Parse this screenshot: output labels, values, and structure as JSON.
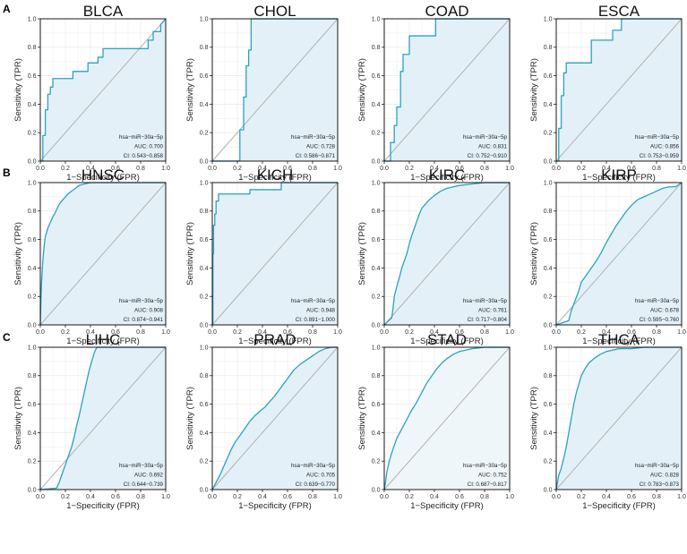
{
  "figure_labels": [
    "A",
    "B",
    "C"
  ],
  "styles": {
    "curve_color": "#2aa3c3",
    "fill_color": "#e3f0f8",
    "fill_color_light": "#eef6fa",
    "diagonal_color": "#b3b3b3",
    "grid_color": "#e6e6e6"
  },
  "chart_data": [
    {
      "type": "line",
      "title": "BLCA",
      "row": 0,
      "col": 0,
      "xlabel": "1−Specificity (FPR)",
      "ylabel": "Sensitivity (TPR)",
      "xlim": [
        0,
        1
      ],
      "ylim": [
        0,
        1
      ],
      "x": [
        0,
        0.02,
        0.02,
        0.04,
        0.04,
        0.06,
        0.06,
        0.08,
        0.08,
        0.1,
        0.1,
        0.26,
        0.26,
        0.38,
        0.38,
        0.46,
        0.46,
        0.5,
        0.5,
        0.68,
        0.68,
        0.86,
        0.86,
        0.9,
        0.9,
        0.96,
        0.96,
        1
      ],
      "y": [
        0,
        0,
        0.18,
        0.18,
        0.36,
        0.36,
        0.47,
        0.47,
        0.52,
        0.52,
        0.58,
        0.58,
        0.63,
        0.63,
        0.69,
        0.69,
        0.73,
        0.73,
        0.79,
        0.79,
        0.79,
        0.79,
        0.85,
        0.85,
        0.91,
        0.91,
        0.96,
        1
      ],
      "legend": {
        "name": "hsa−miR−30a−5p",
        "auc": "AUC: 0.700",
        "ci": "CI: 0.543−0.858"
      }
    },
    {
      "type": "line",
      "title": "CHOL",
      "row": 0,
      "col": 1,
      "xlabel": "1−Specificity (FPR)",
      "ylabel": "Sensitivity (TPR)",
      "xlim": [
        0,
        1
      ],
      "ylim": [
        0,
        1
      ],
      "x": [
        0,
        0.22,
        0.22,
        0.25,
        0.25,
        0.27,
        0.27,
        0.29,
        0.29,
        0.31,
        0.31,
        1
      ],
      "y": [
        0,
        0,
        0.22,
        0.22,
        0.45,
        0.45,
        0.67,
        0.67,
        0.78,
        0.78,
        1,
        1
      ],
      "legend": {
        "name": "hsa−miR−30a−5p",
        "auc": "AUC: 0.728",
        "ci": "CI: 0.586−0.871"
      }
    },
    {
      "type": "line",
      "title": "COAD",
      "row": 0,
      "col": 2,
      "xlabel": "1−Specificity (FPR)",
      "ylabel": "Sensitivity (TPR)",
      "xlim": [
        0,
        1
      ],
      "ylim": [
        0,
        1
      ],
      "x": [
        0,
        0.05,
        0.05,
        0.08,
        0.08,
        0.1,
        0.1,
        0.13,
        0.13,
        0.15,
        0.15,
        0.2,
        0.2,
        0.41,
        0.41,
        1
      ],
      "y": [
        0,
        0,
        0.13,
        0.13,
        0.25,
        0.25,
        0.38,
        0.38,
        0.63,
        0.63,
        0.75,
        0.75,
        0.88,
        0.88,
        1,
        1
      ],
      "legend": {
        "name": "hsa−miR−30a−5p",
        "auc": "AUC: 0.831",
        "ci": "CI: 0.752−0.910"
      }
    },
    {
      "type": "line",
      "title": "ESCA",
      "row": 0,
      "col": 3,
      "xlabel": "1−Specificity (FPR)",
      "ylabel": "Sensitivity (TPR)",
      "xlim": [
        0,
        1
      ],
      "ylim": [
        0,
        1
      ],
      "x": [
        0,
        0.02,
        0.02,
        0.04,
        0.04,
        0.06,
        0.06,
        0.08,
        0.08,
        0.28,
        0.28,
        0.45,
        0.45,
        0.52,
        0.52,
        1
      ],
      "y": [
        0,
        0,
        0.23,
        0.23,
        0.46,
        0.46,
        0.62,
        0.62,
        0.69,
        0.69,
        0.85,
        0.85,
        0.92,
        0.92,
        1,
        1
      ],
      "legend": {
        "name": "hsa−miR−30a−5p",
        "auc": "AUC: 0.856",
        "ci": "CI: 0.753−0.959"
      }
    },
    {
      "type": "line",
      "title": "HNSC",
      "row": 1,
      "col": 0,
      "xlabel": "1−Specificity (FPR)",
      "ylabel": "Sensitivity (TPR)",
      "xlim": [
        0,
        1
      ],
      "ylim": [
        0,
        1
      ],
      "x": [
        0,
        0.005,
        0.01,
        0.02,
        0.03,
        0.04,
        0.06,
        0.08,
        0.1,
        0.12,
        0.14,
        0.16,
        0.18,
        0.2,
        0.22,
        0.25,
        0.28,
        0.31,
        0.35,
        0.4,
        0.5,
        0.6,
        1
      ],
      "y": [
        0,
        0.18,
        0.3,
        0.45,
        0.55,
        0.62,
        0.68,
        0.72,
        0.76,
        0.79,
        0.83,
        0.86,
        0.88,
        0.9,
        0.92,
        0.94,
        0.96,
        0.98,
        0.99,
        1,
        1,
        1,
        1
      ],
      "legend": {
        "name": "hsa−miR−30a−5p",
        "auc": "AUC: 0.908",
        "ci": "CI: 0.874−0.941"
      }
    },
    {
      "type": "line",
      "title": "KICH",
      "row": 1,
      "col": 1,
      "xlabel": "1−Specificity (FPR)",
      "ylabel": "Sensitivity (TPR)",
      "xlim": [
        0,
        1
      ],
      "ylim": [
        0,
        1
      ],
      "x": [
        0,
        0.005,
        0.005,
        0.01,
        0.01,
        0.02,
        0.02,
        0.03,
        0.03,
        0.05,
        0.05,
        0.3,
        0.3,
        0.55,
        0.55,
        0.62,
        0.62,
        1
      ],
      "y": [
        0,
        0,
        0.5,
        0.5,
        0.7,
        0.7,
        0.78,
        0.78,
        0.87,
        0.87,
        0.92,
        0.92,
        0.95,
        0.95,
        1,
        1,
        1,
        1
      ],
      "legend": {
        "name": "hsa−miR−30a−5p",
        "auc": "AUC: 0.948",
        "ci": "CI: 0.891−1.000"
      }
    },
    {
      "type": "line",
      "title": "KIRC",
      "row": 1,
      "col": 2,
      "xlabel": "1−Specificity (FPR)",
      "ylabel": "Sensitivity (TPR)",
      "xlim": [
        0,
        1
      ],
      "ylim": [
        0,
        1
      ],
      "x": [
        0,
        0.06,
        0.07,
        0.08,
        0.1,
        0.12,
        0.14,
        0.16,
        0.18,
        0.2,
        0.22,
        0.24,
        0.26,
        0.28,
        0.3,
        0.33,
        0.36,
        0.4,
        0.45,
        0.5,
        0.6,
        0.7,
        0.8,
        1
      ],
      "y": [
        0,
        0.05,
        0.12,
        0.2,
        0.27,
        0.33,
        0.4,
        0.45,
        0.5,
        0.57,
        0.63,
        0.68,
        0.73,
        0.78,
        0.82,
        0.85,
        0.88,
        0.91,
        0.94,
        0.96,
        0.98,
        0.99,
        1,
        1
      ],
      "legend": {
        "name": "hsa−miR−30a−5p",
        "auc": "AUC: 0.761",
        "ci": "CI: 0.717−0.804"
      }
    },
    {
      "type": "line",
      "title": "KIRP",
      "row": 1,
      "col": 3,
      "xlabel": "1−Specificity (FPR)",
      "ylabel": "Sensitivity (TPR)",
      "xlim": [
        0,
        1
      ],
      "ylim": [
        0,
        1
      ],
      "x": [
        0,
        0.1,
        0.12,
        0.15,
        0.18,
        0.2,
        0.24,
        0.28,
        0.32,
        0.36,
        0.4,
        0.44,
        0.48,
        0.52,
        0.56,
        0.6,
        0.65,
        0.7,
        0.75,
        0.8,
        0.85,
        0.9,
        0.95,
        1
      ],
      "y": [
        0,
        0.03,
        0.1,
        0.17,
        0.24,
        0.3,
        0.35,
        0.4,
        0.45,
        0.51,
        0.58,
        0.64,
        0.7,
        0.75,
        0.8,
        0.84,
        0.88,
        0.9,
        0.92,
        0.94,
        0.96,
        0.97,
        0.97,
        1
      ],
      "legend": {
        "name": "hsa−miR−30a−5p",
        "auc": "AUC: 0.678",
        "ci": "CI: 0.595−0.760"
      }
    },
    {
      "type": "line",
      "title": "LIHC",
      "row": 2,
      "col": 0,
      "xlabel": "1−Specificity (FPR)",
      "ylabel": "Sensitivity (TPR)",
      "xlim": [
        0,
        1
      ],
      "ylim": [
        0,
        1
      ],
      "x": [
        0,
        0.13,
        0.15,
        0.17,
        0.19,
        0.21,
        0.23,
        0.25,
        0.27,
        0.29,
        0.31,
        0.33,
        0.35,
        0.37,
        0.39,
        0.41,
        0.43,
        0.45,
        0.5,
        0.6,
        0.7,
        0.8,
        1
      ],
      "y": [
        0,
        0.01,
        0.05,
        0.1,
        0.15,
        0.2,
        0.25,
        0.3,
        0.37,
        0.45,
        0.52,
        0.6,
        0.68,
        0.76,
        0.84,
        0.9,
        0.96,
        1,
        1,
        1,
        1,
        1,
        1
      ],
      "legend": {
        "name": "hsa−miR−30a−5p",
        "auc": "AUC: 0.692",
        "ci": "CI: 0.644−0.739"
      }
    },
    {
      "type": "line",
      "title": "PRAD",
      "row": 2,
      "col": 1,
      "xlabel": "1−Specificity (FPR)",
      "ylabel": "Sensitivity (TPR)",
      "xlim": [
        0,
        1
      ],
      "ylim": [
        0,
        1
      ],
      "x": [
        0,
        0.03,
        0.06,
        0.09,
        0.12,
        0.15,
        0.18,
        0.22,
        0.26,
        0.3,
        0.34,
        0.38,
        0.42,
        0.46,
        0.5,
        0.55,
        0.6,
        0.65,
        0.7,
        0.75,
        0.8,
        0.85,
        0.9,
        0.95,
        1
      ],
      "y": [
        0,
        0.05,
        0.1,
        0.16,
        0.22,
        0.28,
        0.33,
        0.38,
        0.43,
        0.48,
        0.52,
        0.55,
        0.58,
        0.62,
        0.66,
        0.72,
        0.78,
        0.84,
        0.88,
        0.91,
        0.94,
        0.97,
        0.99,
        1,
        1
      ],
      "legend": {
        "name": "hsa−miR−30a−5p",
        "auc": "AUC: 0.705",
        "ci": "CI: 0.639−0.770"
      }
    },
    {
      "type": "line",
      "title": "STAD",
      "row": 2,
      "col": 2,
      "xlabel": "1−Specificity (FPR)",
      "ylabel": "Sensitivity (TPR)",
      "xlim": [
        0,
        1
      ],
      "ylim": [
        0,
        1
      ],
      "x": [
        0,
        0.01,
        0.02,
        0.04,
        0.06,
        0.08,
        0.1,
        0.13,
        0.16,
        0.19,
        0.22,
        0.25,
        0.28,
        0.31,
        0.34,
        0.38,
        0.42,
        0.46,
        0.5,
        0.55,
        0.6,
        0.7,
        0.8,
        0.9,
        1
      ],
      "y": [
        0,
        0.05,
        0.12,
        0.2,
        0.26,
        0.31,
        0.36,
        0.41,
        0.46,
        0.51,
        0.56,
        0.6,
        0.65,
        0.7,
        0.75,
        0.8,
        0.85,
        0.89,
        0.92,
        0.95,
        0.97,
        0.99,
        1,
        1,
        1
      ],
      "legend": {
        "name": "hsa−miR−30a−5p",
        "auc": "AUC: 0.752",
        "ci": "CI: 0.687−0.817"
      }
    },
    {
      "type": "line",
      "title": "THCA",
      "row": 2,
      "col": 3,
      "xlabel": "1−Specificity (FPR)",
      "ylabel": "Sensitivity (TPR)",
      "xlim": [
        0,
        1
      ],
      "ylim": [
        0,
        1
      ],
      "x": [
        0,
        0.01,
        0.02,
        0.04,
        0.06,
        0.08,
        0.1,
        0.12,
        0.14,
        0.16,
        0.18,
        0.2,
        0.23,
        0.26,
        0.3,
        0.35,
        0.4,
        0.45,
        0.5,
        0.6,
        0.7,
        0.85,
        1
      ],
      "y": [
        0,
        0.05,
        0.1,
        0.15,
        0.22,
        0.3,
        0.4,
        0.5,
        0.6,
        0.68,
        0.74,
        0.8,
        0.85,
        0.89,
        0.92,
        0.95,
        0.97,
        0.98,
        0.99,
        0.99,
        1,
        1,
        1
      ],
      "legend": {
        "name": "hsa−miR−30a−5p",
        "auc": "AUC: 0.828",
        "ci": "CI: 0.783−0.873"
      }
    }
  ]
}
